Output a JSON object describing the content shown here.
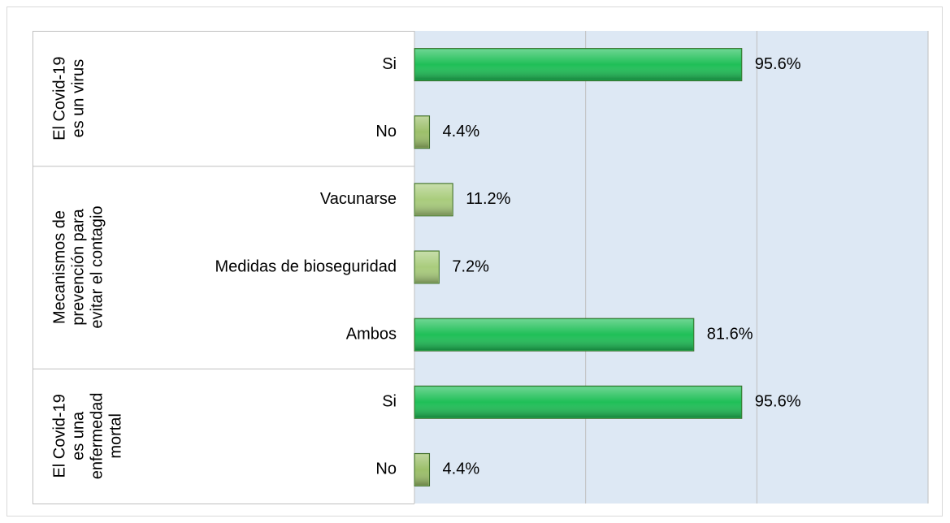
{
  "chart_data": {
    "type": "bar",
    "orientation": "horizontal",
    "groups": [
      {
        "lines": [
          "El Covid-19",
          "es un virus"
        ],
        "start": 0,
        "end": 1
      },
      {
        "lines": [
          "Mecanismos de",
          "prevención para",
          "evitar el contagio"
        ],
        "start": 2,
        "end": 4
      },
      {
        "lines": [
          "El Covid-19",
          "es una",
          "enfermedad",
          "mortal"
        ],
        "start": 5,
        "end": 6
      }
    ],
    "categories": [
      "Si",
      "No",
      "Vacunarse",
      "Medidas de bioseguridad",
      "Ambos",
      "Si",
      "No"
    ],
    "values": [
      95.6,
      4.4,
      11.2,
      7.2,
      81.6,
      95.6,
      4.4
    ],
    "value_labels": [
      "95.6%",
      "4.4%",
      "11.2%",
      "7.2%",
      "81.6%",
      "95.6%",
      "4.4%"
    ],
    "colors": [
      "#1fbf57",
      "#9cbf6a",
      "#a9cc7c",
      "#a9cc7c",
      "#1fbf57",
      "#1fbf57",
      "#9cbf6a"
    ],
    "xlim": [
      0,
      150
    ],
    "xticks": [
      0,
      50,
      100,
      150
    ],
    "grid": true
  }
}
